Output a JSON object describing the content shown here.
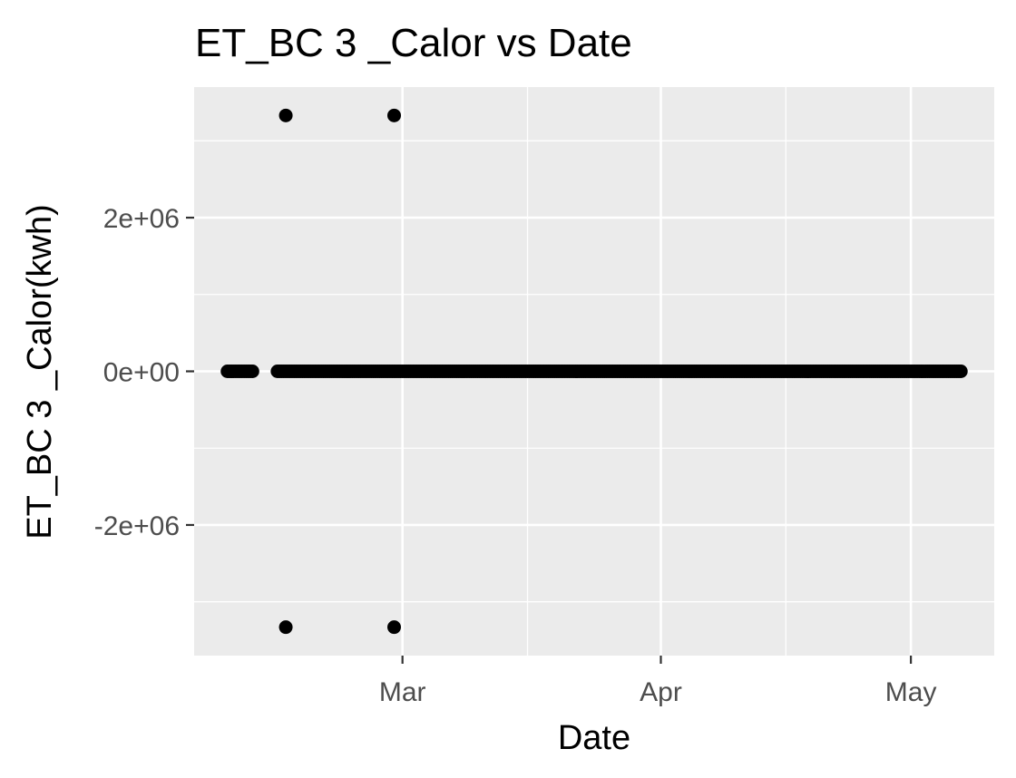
{
  "chart_data": {
    "type": "scatter",
    "title": "ET_BC 3 _Calor vs Date",
    "xlabel": "Date",
    "ylabel": "ET_BC 3 _Calor(kwh)",
    "x_range": [
      "2021-02-04",
      "2021-05-11"
    ],
    "ylim": [
      -3700000,
      3700000
    ],
    "x_ticks": [
      {
        "date": "2021-03-01",
        "label": "Mar"
      },
      {
        "date": "2021-04-01",
        "label": "Apr"
      },
      {
        "date": "2021-05-01",
        "label": "May"
      }
    ],
    "x_minor_ticks": [
      "2021-03-16",
      "2021-04-16"
    ],
    "y_ticks": [
      {
        "value": 2000000,
        "label": "2e+06"
      },
      {
        "value": 0,
        "label": "0e+00"
      },
      {
        "value": -2000000,
        "label": "-2e+06"
      }
    ],
    "y_minor_ticks": [
      3000000,
      1000000,
      -1000000,
      -3000000
    ],
    "grid": true,
    "background": "#ebebeb",
    "point_color": "#000000",
    "zero_value_segments": [
      {
        "from": "2021-02-08",
        "to": "2021-02-11",
        "value": 0
      },
      {
        "from": "2021-02-14",
        "to": "2021-05-07",
        "value": 0
      }
    ],
    "points": [
      {
        "x": "2021-02-15",
        "y": 3330000
      },
      {
        "x": "2021-02-28",
        "y": 3330000
      },
      {
        "x": "2021-02-15",
        "y": -3330000
      },
      {
        "x": "2021-02-28",
        "y": -3330000
      }
    ]
  }
}
